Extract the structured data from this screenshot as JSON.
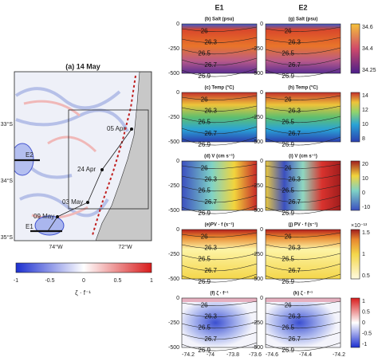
{
  "map": {
    "title": "(a) 14 May",
    "xticks": [
      "74°W",
      "72°W"
    ],
    "yticks": [
      "33°S",
      "34°S",
      "35°S"
    ],
    "dates": [
      "05 Apr",
      "24 Apr",
      "03 May",
      "09 May"
    ],
    "eddies": [
      "E2",
      "E1"
    ],
    "colorbar": {
      "ticks": [
        "-1",
        "-0.5",
        "0",
        "0.5",
        "1"
      ],
      "label": "ζ · f⁻¹"
    }
  },
  "columns": [
    "E1",
    "E2"
  ],
  "depth_ticks": [
    "0",
    "-250",
    "-500"
  ],
  "x_ticks": [
    [
      "-74.2",
      "-74",
      "-73.8",
      "-73.6"
    ],
    [
      "-74.6",
      "-74.4",
      "-74.2"
    ]
  ],
  "rows": [
    {
      "titles": [
        "(b) Salt (psu)",
        "(g) Salt (psu)"
      ],
      "colorbar_ticks": [
        "34.6",
        "34.4",
        "34.25"
      ],
      "contours": [
        "26",
        "26.3",
        "26.5",
        "26.7",
        "26.9"
      ]
    },
    {
      "titles": [
        "(c) Temp (°C)",
        "(h) Temp (°C)"
      ],
      "colorbar_ticks": [
        "14",
        "12",
        "10",
        "8"
      ],
      "contours": [
        "26",
        "26.3",
        "26.5",
        "26.7",
        "26.9"
      ]
    },
    {
      "titles": [
        "(d) V (cm s⁻¹)",
        "(i) V (cm s⁻¹)"
      ],
      "colorbar_ticks": [
        "20",
        "10",
        "0",
        "-10"
      ],
      "contours": [
        "26",
        "26.3",
        "26.5",
        "26.7",
        "26.9"
      ]
    },
    {
      "titles": [
        "(e)PV · f (s⁻¹)",
        "(j) PV · f (s⁻¹)"
      ],
      "colorbar_ticks": [
        "1.5",
        "1",
        "0.5"
      ],
      "exponent": "×10⁻¹³",
      "contours": [
        "26",
        "26.3",
        "26.5",
        "26.7",
        "26.9"
      ]
    },
    {
      "titles": [
        "(f) ζ · f⁻¹",
        "(k) ζ · f⁻¹"
      ],
      "colorbar_ticks": [
        "1",
        "0.5",
        "0",
        "-0.5",
        "-1"
      ],
      "contours": [
        "26",
        "26.3",
        "26.5",
        "26.7",
        "26.9"
      ]
    }
  ]
}
